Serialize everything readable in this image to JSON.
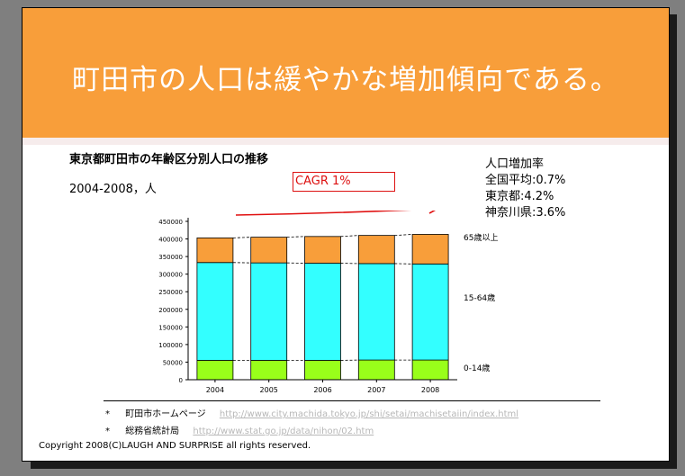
{
  "slide": {
    "title": "町田市の人口は緩やかな増加傾向である。",
    "chart_title": "東京都町田市の年齢区分別人口の推移",
    "subtitle": "2004-2008，人",
    "cagr_label": "CAGR 1%",
    "growth": {
      "heading": "人口増加率",
      "lines": [
        "全国平均:0.7%",
        "東京都:4.2%",
        "神奈川県:3.6%"
      ]
    },
    "sources": [
      {
        "bullet": "*",
        "label": "町田市ホームページ",
        "url": "http://www.city.machida.tokyo.jp/shi/setai/machisetaiin/index.html"
      },
      {
        "bullet": "*",
        "label": "総務省統計局",
        "url": "http://www.stat.go.jp/data/nihon/02.htm"
      }
    ],
    "copyright": "Copyright 2008(C)LAUGH AND SURPRISE all rights reserved."
  },
  "colors": {
    "banner": "#f89e3a",
    "age_0_14": "#99ff1a",
    "age_15_64": "#33ffff",
    "age_65_plus": "#f89e3a",
    "cagr_arrow": "#e01010"
  },
  "chart_data": {
    "type": "bar",
    "stacked": true,
    "categories": [
      "2004",
      "2005",
      "2006",
      "2007",
      "2008"
    ],
    "series": [
      {
        "name": "0-14歳",
        "values": [
          55000,
          55000,
          55000,
          56000,
          56000
        ]
      },
      {
        "name": "15-64歳",
        "values": [
          278000,
          277000,
          276000,
          274000,
          273000
        ]
      },
      {
        "name": "65歳以上",
        "values": [
          70000,
          73000,
          76000,
          80000,
          84000
        ]
      }
    ],
    "ylim": [
      0,
      450000
    ],
    "yticks": [
      "0",
      "50000",
      "100000",
      "150000",
      "200000",
      "250000",
      "300000",
      "350000",
      "400000",
      "450000"
    ],
    "series_labels": [
      "0-14歳",
      "15-64歳",
      "65歳以上"
    ],
    "connector_lines": true,
    "grid": false
  }
}
